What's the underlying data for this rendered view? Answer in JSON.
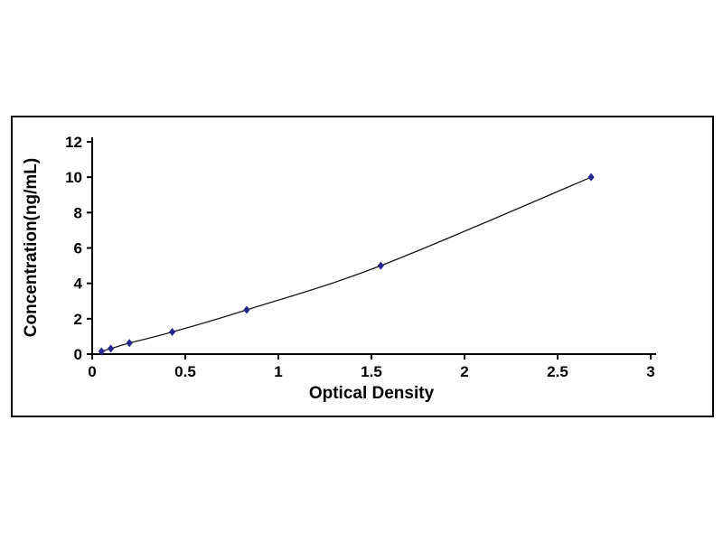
{
  "page": {
    "background": "#ffffff"
  },
  "chart_data": {
    "type": "line",
    "title": "",
    "xlabel": "Optical Density",
    "ylabel": "Concentration(ng/mL)",
    "x": [
      0.05,
      0.1,
      0.2,
      0.43,
      0.83,
      1.55,
      2.68
    ],
    "y": [
      0.156,
      0.312,
      0.625,
      1.25,
      2.5,
      5,
      10
    ],
    "xlim": [
      0,
      3
    ],
    "ylim": [
      0,
      12
    ],
    "xtick_values": [
      0,
      0.5,
      1,
      1.5,
      2,
      2.5,
      3
    ],
    "xtick_labels": [
      "0",
      "0.5",
      "1",
      "1.5",
      "2",
      "2.5",
      "3"
    ],
    "ytick_values": [
      0,
      2,
      4,
      6,
      8,
      10,
      12
    ],
    "ytick_labels": [
      "0",
      "2",
      "4",
      "6",
      "8",
      "10",
      "12"
    ],
    "grid": false,
    "legend": "none",
    "marker": "diamond",
    "marker_color": "#26268C",
    "line_color": "#1A1A1A",
    "axis_color": "#000000",
    "text_color": "#000000"
  }
}
